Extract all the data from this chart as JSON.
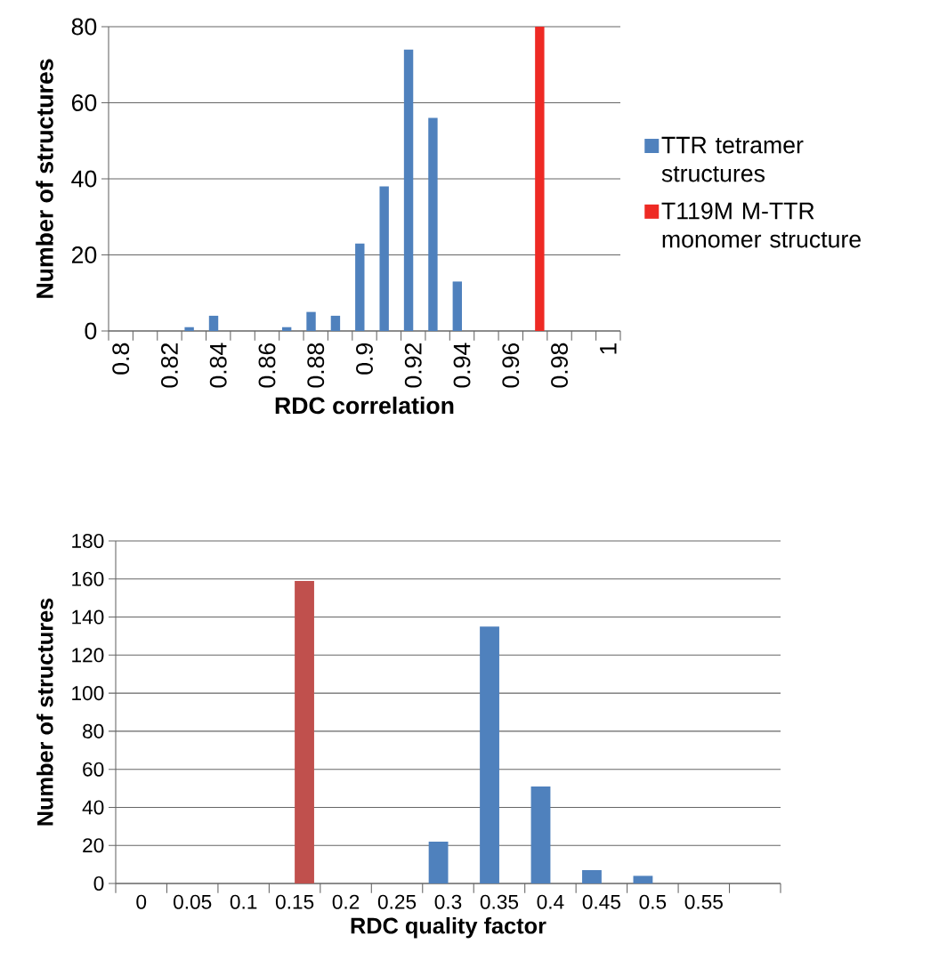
{
  "chart_data": [
    {
      "type": "bar",
      "xlabel": "RDC correlation",
      "ylabel": "Number of structures",
      "categories": [
        "0.8",
        null,
        "0.82",
        null,
        "0.84",
        null,
        "0.86",
        null,
        "0.88",
        null,
        "0.9",
        null,
        "0.92",
        null,
        "0.94",
        null,
        "0.96",
        null,
        "0.98",
        null,
        "1"
      ],
      "series": [
        {
          "name": "TTR tetramer structures",
          "color": "#4f81bd",
          "values": [
            0,
            0,
            0,
            1,
            4,
            0,
            0,
            1,
            5,
            4,
            23,
            38,
            74,
            56,
            13,
            0,
            0,
            0,
            0,
            0,
            0
          ]
        },
        {
          "name": "T119M M-TTR monomer structure",
          "color": "#ee2a24",
          "values": [
            0,
            0,
            0,
            0,
            0,
            0,
            0,
            0,
            0,
            0,
            0,
            0,
            0,
            0,
            0,
            0,
            0,
            80,
            0,
            0,
            0
          ]
        }
      ],
      "ylim": [
        0,
        80
      ],
      "yticks": [
        0,
        20,
        40,
        60,
        80
      ],
      "grid": "y",
      "legend": "right"
    },
    {
      "type": "bar",
      "xlabel": "RDC quality factor",
      "ylabel": "Number of structures",
      "categories": [
        "0",
        "0.05",
        "0.1",
        "0.15",
        "0.2",
        "0.25",
        "0.3",
        "0.35",
        "0.4",
        "0.45",
        "0.5",
        "0.55",
        null
      ],
      "series": [
        {
          "color": "#4f81bd",
          "values": [
            0,
            0,
            0,
            0,
            0,
            0,
            22,
            135,
            51,
            7,
            4,
            0,
            0
          ]
        },
        {
          "color": "#c0504d",
          "values": [
            0,
            0,
            0,
            159,
            0,
            0,
            0,
            0,
            0,
            0,
            0,
            0,
            0
          ]
        }
      ],
      "ylim": [
        0,
        180
      ],
      "yticks": [
        0,
        20,
        40,
        60,
        80,
        100,
        120,
        140,
        160,
        180
      ],
      "grid": "y"
    }
  ]
}
